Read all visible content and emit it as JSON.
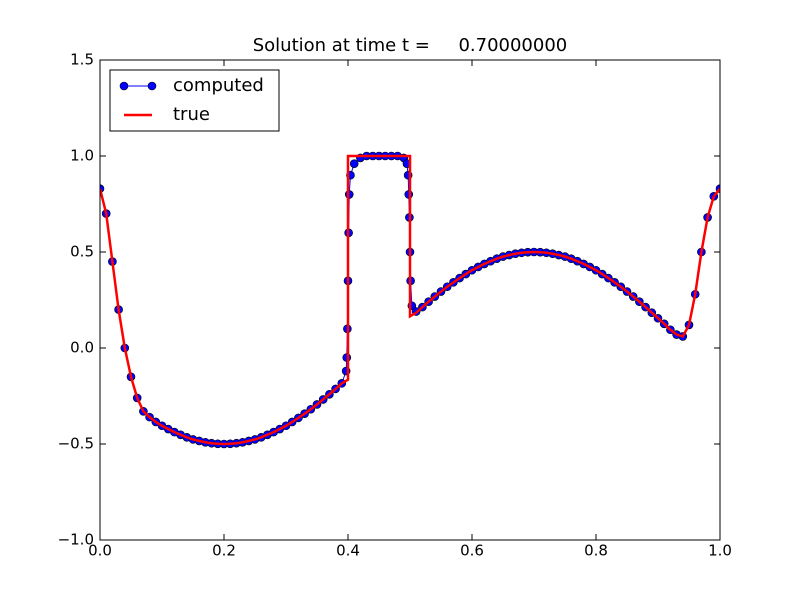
{
  "chart_data": {
    "type": "line",
    "title": "Solution at time t =     0.70000000",
    "xlim": [
      0,
      1
    ],
    "ylim": [
      -1,
      1.5
    ],
    "xticks": [
      {
        "value": 0,
        "label": "0.0"
      },
      0.2,
      0.4,
      0.6,
      0.8,
      {
        "value": 1,
        "label": "1.0"
      }
    ],
    "yticks": [
      {
        "value": -1,
        "label": "−1.0"
      },
      {
        "value": -0.5,
        "label": "−0.5"
      },
      {
        "value": 0,
        "label": "0.0"
      },
      0.5,
      {
        "value": 1,
        "label": "1.0"
      },
      1.5
    ],
    "legend": "upper left",
    "series": [
      {
        "name": "computed",
        "color": "#0000ff",
        "marker": "o",
        "x": [
          0,
          0.01,
          0.02,
          0.03,
          0.04,
          0.05,
          0.06,
          0.07,
          0.08,
          0.09,
          0.1,
          0.11,
          0.12,
          0.13,
          0.14,
          0.15,
          0.16,
          0.17,
          0.18,
          0.19,
          0.2,
          0.21,
          0.22,
          0.23,
          0.24,
          0.25,
          0.26,
          0.27,
          0.28,
          0.29,
          0.3,
          0.31,
          0.32,
          0.33,
          0.34,
          0.35,
          0.36,
          0.37,
          0.38,
          0.39,
          0.397,
          0.398,
          0.399,
          0.4,
          0.401,
          0.402,
          0.404,
          0.41,
          0.42,
          0.43,
          0.44,
          0.45,
          0.46,
          0.47,
          0.48,
          0.49,
          0.495,
          0.497,
          0.498,
          0.499,
          0.5,
          0.501,
          0.503,
          0.51,
          0.52,
          0.53,
          0.54,
          0.55,
          0.56,
          0.57,
          0.58,
          0.59,
          0.6,
          0.61,
          0.62,
          0.63,
          0.64,
          0.65,
          0.66,
          0.67,
          0.68,
          0.69,
          0.7,
          0.71,
          0.72,
          0.73,
          0.74,
          0.75,
          0.76,
          0.77,
          0.78,
          0.79,
          0.8,
          0.81,
          0.82,
          0.83,
          0.84,
          0.85,
          0.86,
          0.87,
          0.88,
          0.89,
          0.9,
          0.91,
          0.92,
          0.93,
          0.94,
          0.95,
          0.96,
          0.97,
          0.98,
          0.99,
          1
        ],
        "values": [
          0.83,
          0.7,
          0.45,
          0.2,
          0,
          -0.15,
          -0.26,
          -0.33,
          -0.36,
          -0.385,
          -0.405,
          -0.422,
          -0.438,
          -0.452,
          -0.465,
          -0.476,
          -0.484,
          -0.491,
          -0.496,
          -0.499,
          -0.5,
          -0.499,
          -0.496,
          -0.491,
          -0.484,
          -0.476,
          -0.465,
          -0.452,
          -0.438,
          -0.422,
          -0.405,
          -0.385,
          -0.364,
          -0.342,
          -0.319,
          -0.294,
          -0.268,
          -0.241,
          -0.213,
          -0.184,
          -0.12,
          -0.05,
          0.1,
          0.35,
          0.6,
          0.8,
          0.9,
          0.96,
          0.99,
          1,
          1,
          1,
          1,
          1,
          1,
          0.99,
          0.96,
          0.9,
          0.8,
          0.68,
          0.5,
          0.35,
          0.22,
          0.19,
          0.213,
          0.241,
          0.268,
          0.294,
          0.319,
          0.342,
          0.364,
          0.385,
          0.405,
          0.422,
          0.438,
          0.452,
          0.465,
          0.476,
          0.484,
          0.491,
          0.496,
          0.499,
          0.5,
          0.499,
          0.496,
          0.491,
          0.484,
          0.476,
          0.465,
          0.452,
          0.438,
          0.422,
          0.405,
          0.385,
          0.364,
          0.342,
          0.319,
          0.294,
          0.268,
          0.241,
          0.213,
          0.184,
          0.155,
          0.126,
          0.095,
          0.07,
          0.06,
          0.12,
          0.28,
          0.5,
          0.68,
          0.79,
          0.83
        ]
      },
      {
        "name": "true",
        "color": "#ff0000",
        "x": [
          0,
          0.01,
          0.02,
          0.03,
          0.04,
          0.05,
          0.06,
          0.07,
          0.08,
          0.09,
          0.1,
          0.11,
          0.12,
          0.13,
          0.14,
          0.15,
          0.16,
          0.17,
          0.18,
          0.19,
          0.2,
          0.21,
          0.22,
          0.23,
          0.24,
          0.25,
          0.26,
          0.27,
          0.28,
          0.29,
          0.3,
          0.31,
          0.32,
          0.33,
          0.34,
          0.35,
          0.36,
          0.37,
          0.38,
          0.39,
          0.4,
          0.4,
          0.5,
          0.5,
          0.51,
          0.52,
          0.53,
          0.54,
          0.55,
          0.56,
          0.57,
          0.58,
          0.59,
          0.6,
          0.61,
          0.62,
          0.63,
          0.64,
          0.65,
          0.66,
          0.67,
          0.68,
          0.69,
          0.7,
          0.71,
          0.72,
          0.73,
          0.74,
          0.75,
          0.76,
          0.77,
          0.78,
          0.79,
          0.8,
          0.81,
          0.82,
          0.83,
          0.84,
          0.85,
          0.86,
          0.87,
          0.88,
          0.89,
          0.9,
          0.91,
          0.92,
          0.93,
          0.94,
          0.95,
          0.96,
          0.97,
          0.98,
          0.99,
          1
        ],
        "values": [
          0.83,
          0.7,
          0.45,
          0.2,
          0,
          -0.15,
          -0.26,
          -0.33,
          -0.36,
          -0.385,
          -0.405,
          -0.422,
          -0.438,
          -0.452,
          -0.465,
          -0.476,
          -0.484,
          -0.491,
          -0.496,
          -0.499,
          -0.5,
          -0.499,
          -0.496,
          -0.491,
          -0.484,
          -0.476,
          -0.465,
          -0.452,
          -0.438,
          -0.422,
          -0.405,
          -0.385,
          -0.364,
          -0.342,
          -0.319,
          -0.294,
          -0.268,
          -0.241,
          -0.213,
          -0.184,
          -0.165,
          1,
          1,
          0.165,
          0.184,
          0.213,
          0.241,
          0.268,
          0.294,
          0.319,
          0.342,
          0.364,
          0.385,
          0.405,
          0.422,
          0.438,
          0.452,
          0.465,
          0.476,
          0.484,
          0.491,
          0.496,
          0.499,
          0.5,
          0.499,
          0.496,
          0.491,
          0.484,
          0.476,
          0.465,
          0.452,
          0.438,
          0.422,
          0.405,
          0.385,
          0.364,
          0.342,
          0.319,
          0.294,
          0.268,
          0.241,
          0.213,
          0.184,
          0.155,
          0.126,
          0.095,
          0.07,
          0.06,
          0.12,
          0.28,
          0.5,
          0.68,
          0.79,
          0.83
        ]
      }
    ]
  }
}
